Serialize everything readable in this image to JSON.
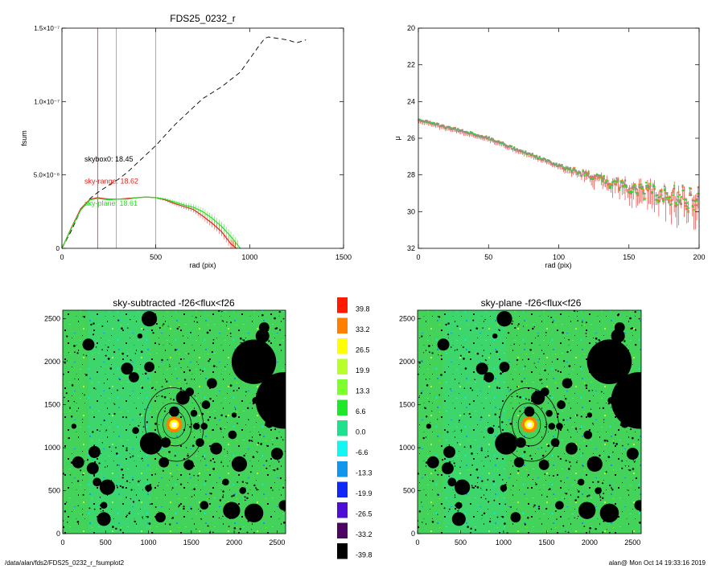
{
  "footer": {
    "path": "/data/alan/fds2/FDS25_0232_r_fsumplot2",
    "user_date": "alan@  Mon Oct 14 19:33:16 2019"
  },
  "colors": {
    "black": "#000000",
    "red": "#e8211b",
    "green": "#27e020",
    "gray": "#909090",
    "orange": "#ee7a1f",
    "galaxy_field": "#43d25a"
  },
  "chart_data": [
    {
      "id": "growth-curve",
      "type": "line",
      "title": "FDS25_0232_r",
      "xlabel": "rad (pix)",
      "ylabel": "fsum",
      "xlim": [
        0,
        1500
      ],
      "ylim": [
        0,
        1.5e-07
      ],
      "xticks": [
        0,
        500,
        1000,
        1500
      ],
      "yticks": [
        {
          "value": 0,
          "label": "0"
        },
        {
          "value": 5e-08,
          "label": "5.0×10⁻⁸"
        },
        {
          "value": 1e-07,
          "label": "1.0×10⁻⁷"
        },
        {
          "value": 1.5e-07,
          "label": "1.5×10⁻⁷"
        }
      ],
      "vlines": [
        {
          "x": 190,
          "color": "red"
        },
        {
          "x": 290,
          "color": "gray"
        },
        {
          "x": 500,
          "color": "gray"
        }
      ],
      "annotations": [
        {
          "text": "skybox0: 18.45",
          "color": "black",
          "x": 120,
          "y": 5.9e-08
        },
        {
          "text": "sky-range: 18.62",
          "color": "red",
          "x": 120,
          "y": 4.4e-08
        },
        {
          "text": "sky-plane: 18.61",
          "color": "green",
          "x": 120,
          "y": 2.9e-08
        }
      ],
      "series": [
        {
          "color": "black",
          "style": "dashed",
          "x": [
            0,
            50,
            100,
            150,
            190,
            250,
            300,
            350,
            400,
            450,
            500,
            550,
            600,
            650,
            700,
            750,
            800,
            850,
            900,
            950,
            1000,
            1050,
            1080,
            1100,
            1150,
            1200,
            1250,
            1300
          ],
          "y": [
            0,
            1.2e-08,
            2.6e-08,
            3.4e-08,
            3.8e-08,
            4.3e-08,
            4.7e-08,
            5.2e-08,
            5.8e-08,
            6.4e-08,
            7e-08,
            7.7e-08,
            8.4e-08,
            9e-08,
            9.6e-08,
            1.02e-07,
            1.06e-07,
            1.1e-07,
            1.15e-07,
            1.2e-07,
            1.29e-07,
            1.38e-07,
            1.43e-07,
            1.44e-07,
            1.43e-07,
            1.42e-07,
            1.4e-07,
            1.42e-07
          ]
        },
        {
          "color": "red",
          "style": "solid",
          "x": [
            0,
            50,
            100,
            150,
            190,
            250,
            300,
            350,
            400,
            450,
            500,
            550,
            600,
            650,
            700,
            750,
            800,
            850,
            900,
            930
          ],
          "y": [
            0,
            1.4e-08,
            2.7e-08,
            3.35e-08,
            3.45e-08,
            3.35e-08,
            3.35e-08,
            3.4e-08,
            3.45e-08,
            3.5e-08,
            3.45e-08,
            3.3e-08,
            3.05e-08,
            2.85e-08,
            2.65e-08,
            2.2e-08,
            1.7e-08,
            1.15e-08,
            3e-09,
            0
          ]
        },
        {
          "color": "green",
          "style": "solid",
          "x": [
            0,
            50,
            100,
            150,
            190,
            250,
            300,
            350,
            400,
            450,
            500,
            550,
            600,
            650,
            700,
            750,
            800,
            850,
            900,
            950
          ],
          "y": [
            0,
            1.35e-08,
            2.6e-08,
            3.3e-08,
            3.4e-08,
            3.3e-08,
            3.35e-08,
            3.35e-08,
            3.45e-08,
            3.5e-08,
            3.45e-08,
            3.35e-08,
            3.15e-08,
            2.95e-08,
            2.8e-08,
            2.5e-08,
            2.05e-08,
            1.5e-08,
            8e-09,
            0
          ]
        }
      ]
    },
    {
      "id": "surface-brightness",
      "type": "scatter",
      "xlabel": "rad (pix)",
      "ylabel": "μ",
      "xlim": [
        0,
        200
      ],
      "ylim": [
        32,
        20
      ],
      "xticks": [
        0,
        50,
        100,
        150,
        200
      ],
      "yticks": [
        20,
        22,
        24,
        26,
        28,
        30,
        32
      ],
      "trend": [
        {
          "x": 0,
          "y": 25.0
        },
        {
          "x": 50,
          "y": 26.0
        },
        {
          "x": 100,
          "y": 27.5
        },
        {
          "x": 150,
          "y": 28.7
        },
        {
          "x": 200,
          "y": 29.4
        }
      ],
      "colors": [
        "orange",
        "green",
        "gray",
        "red"
      ]
    },
    {
      "id": "image-left",
      "type": "heatmap",
      "title": "sky-subtracted -f26<flux<f26",
      "xlim": [
        0,
        2600
      ],
      "ylim": [
        0,
        2600
      ],
      "xticks": [
        0,
        500,
        1000,
        1500,
        2000,
        2500
      ],
      "yticks": [
        0,
        500,
        1000,
        1500,
        2000,
        2500
      ]
    },
    {
      "id": "image-right",
      "type": "heatmap",
      "title": "sky-plane -f26<flux<f26",
      "xlim": [
        0,
        2600
      ],
      "ylim": [
        0,
        2600
      ],
      "xticks": [
        0,
        500,
        1000,
        1500,
        2000,
        2500
      ],
      "yticks": [
        0,
        500,
        1000,
        1500,
        2000,
        2500
      ]
    },
    {
      "id": "colorbar",
      "type": "table",
      "levels": [
        {
          "label": "39.8",
          "color": "#ff1a00"
        },
        {
          "label": "33.2",
          "color": "#ff7f00"
        },
        {
          "label": "26.5",
          "color": "#ffff00"
        },
        {
          "label": "19.9",
          "color": "#b9ff29"
        },
        {
          "label": "13.3",
          "color": "#7dff2e"
        },
        {
          "label": "6.6",
          "color": "#1ee82a"
        },
        {
          "label": "0.0",
          "color": "#1ee18e"
        },
        {
          "label": "-6.6",
          "color": "#12f7f1"
        },
        {
          "label": "-13.3",
          "color": "#1096ee"
        },
        {
          "label": "-19.9",
          "color": "#1028f7"
        },
        {
          "label": "-26.5",
          "color": "#4d0ed8"
        },
        {
          "label": "-33.2",
          "color": "#4d0463"
        },
        {
          "label": "-39.8",
          "color": "#000000"
        }
      ]
    }
  ]
}
